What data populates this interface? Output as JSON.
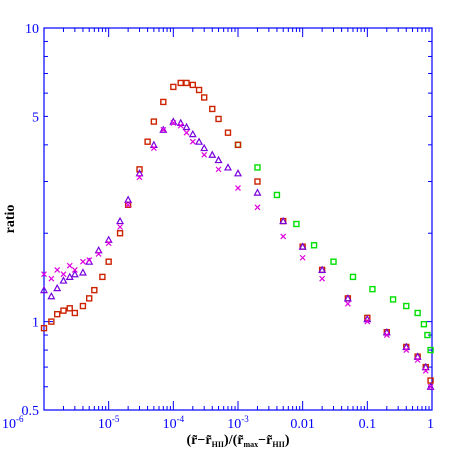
{
  "chart_data": {
    "type": "scatter",
    "title": "",
    "xlabel": "(r̃−r̃HII)/(r̃max−r̃HII)",
    "xlabel_parts": {
      "open": "(",
      "r1": "r̃",
      "minus1": "−",
      "r2": "r̃",
      "sub2": "HII",
      "mid": ")/(",
      "r3": "r̃",
      "sub3": "max",
      "minus2": "−",
      "r4": "r̃",
      "sub4": "HII",
      "close": ")"
    },
    "ylabel": "ratio",
    "xscale": "log",
    "yscale": "log",
    "xlim": [
      1e-06,
      1
    ],
    "ylim": [
      0.5,
      10
    ],
    "grid": false,
    "legend": "none",
    "axis_color": "#0000ff",
    "x_ticks": [
      {
        "value": 1e-06,
        "base": "10",
        "exp": "-6"
      },
      {
        "value": 1e-05,
        "base": "10",
        "exp": "-5"
      },
      {
        "value": 0.0001,
        "base": "10",
        "exp": "-4"
      },
      {
        "value": 0.001,
        "base": "10",
        "exp": "-3"
      },
      {
        "value": 0.01,
        "base": "0.01",
        "exp": ""
      },
      {
        "value": 0.1,
        "base": "0.1",
        "exp": ""
      },
      {
        "value": 1,
        "base": "1",
        "exp": ""
      }
    ],
    "y_ticks": [
      {
        "value": 0.5,
        "label": "0.5"
      },
      {
        "value": 1,
        "label": "1"
      },
      {
        "value": 5,
        "label": "5"
      },
      {
        "value": 10,
        "label": "10"
      }
    ],
    "series": [
      {
        "marker": "square",
        "color": "#00e000",
        "x": [
          0.001,
          0.002,
          0.004,
          0.008,
          0.015,
          0.03,
          0.06,
          0.12,
          0.25,
          0.4,
          0.6,
          0.75,
          0.85,
          0.95
        ],
        "y": [
          4.0,
          3.35,
          2.7,
          2.15,
          1.82,
          1.6,
          1.42,
          1.29,
          1.19,
          1.13,
          1.07,
          0.98,
          0.9,
          0.8
        ]
      },
      {
        "marker": "square",
        "color": "#cc2200",
        "x": [
          1e-06,
          1.3e-06,
          1.6e-06,
          2e-06,
          2.5e-06,
          3e-06,
          4e-06,
          5e-06,
          6e-06,
          8e-06,
          1e-05,
          1.5e-05,
          2e-05,
          3e-05,
          4e-05,
          5e-05,
          7e-05,
          0.0001,
          0.00013,
          0.00016,
          0.0002,
          0.00025,
          0.0003,
          0.0004,
          0.0005,
          0.0007,
          0.001,
          0.002,
          0.005,
          0.01,
          0.02,
          0.05,
          0.1,
          0.2,
          0.4,
          0.6,
          0.8,
          0.95
        ],
        "y": [
          0.95,
          1.0,
          1.06,
          1.09,
          1.11,
          1.07,
          1.13,
          1.2,
          1.28,
          1.42,
          1.6,
          2.0,
          2.5,
          3.3,
          4.1,
          4.8,
          5.6,
          6.3,
          6.5,
          6.5,
          6.4,
          6.15,
          5.8,
          5.3,
          4.9,
          4.4,
          4.0,
          3.0,
          2.2,
          1.8,
          1.5,
          1.2,
          1.03,
          0.92,
          0.82,
          0.76,
          0.7,
          0.63
        ]
      },
      {
        "marker": "triangle",
        "color": "#7700dd",
        "x": [
          1e-06,
          1.3e-06,
          1.6e-06,
          2e-06,
          2.5e-06,
          3e-06,
          4e-06,
          5e-06,
          7e-06,
          1e-05,
          1.5e-05,
          2e-05,
          3e-05,
          5e-05,
          7e-05,
          0.0001,
          0.00013,
          0.00016,
          0.0002,
          0.00025,
          0.0003,
          0.0004,
          0.0005,
          0.0007,
          0.001,
          0.002,
          0.005,
          0.01,
          0.02,
          0.05,
          0.1,
          0.2,
          0.4,
          0.6,
          0.8,
          0.95
        ],
        "y": [
          1.28,
          1.22,
          1.3,
          1.38,
          1.42,
          1.45,
          1.47,
          1.6,
          1.75,
          1.9,
          2.2,
          2.6,
          3.2,
          4.0,
          4.5,
          4.8,
          4.75,
          4.6,
          4.35,
          4.1,
          3.9,
          3.7,
          3.55,
          3.35,
          3.2,
          2.75,
          2.2,
          1.8,
          1.5,
          1.2,
          1.02,
          0.92,
          0.82,
          0.76,
          0.7,
          0.6
        ]
      },
      {
        "marker": "x",
        "color": "#e000e0",
        "x": [
          1e-06,
          1.3e-06,
          1.6e-06,
          2e-06,
          2.5e-06,
          3e-06,
          4e-06,
          5e-06,
          7e-06,
          1e-05,
          1.5e-05,
          2e-05,
          3e-05,
          5e-05,
          7e-05,
          0.0001,
          0.00013,
          0.00016,
          0.0002,
          0.0003,
          0.0005,
          0.001,
          0.002,
          0.005,
          0.01,
          0.02,
          0.05,
          0.1,
          0.2,
          0.4,
          0.6,
          0.8,
          0.95
        ],
        "y": [
          1.45,
          1.4,
          1.5,
          1.45,
          1.55,
          1.5,
          1.6,
          1.62,
          1.7,
          1.85,
          2.1,
          2.5,
          3.1,
          3.9,
          4.5,
          4.75,
          4.65,
          4.4,
          4.1,
          3.7,
          3.3,
          2.85,
          2.45,
          1.95,
          1.65,
          1.4,
          1.15,
          1.0,
          0.9,
          0.8,
          0.74,
          0.68,
          0.6
        ]
      }
    ]
  }
}
